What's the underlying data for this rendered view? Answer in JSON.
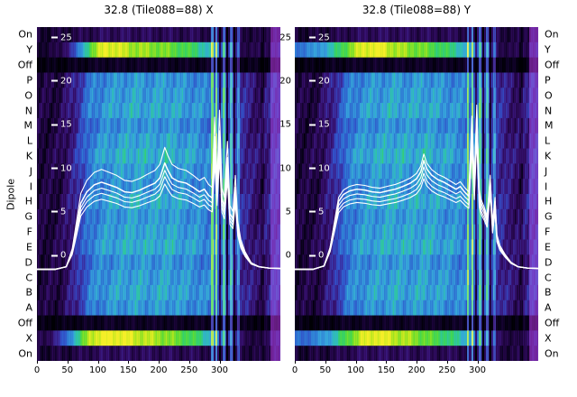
{
  "figure": {
    "y_axis_label": "Dipole"
  },
  "chart_data": {
    "type": "heatmap",
    "note": "Two spectrogram panels (power vs channel per dipole row) with overlaid white bandpass line plots",
    "x_range": [
      0,
      400
    ],
    "x_ticks": [
      0,
      50,
      100,
      150,
      200,
      250,
      300
    ],
    "rows": [
      "On",
      "Y",
      "Off",
      "P",
      "O",
      "N",
      "M",
      "L",
      "K",
      "J",
      "I",
      "H",
      "G",
      "F",
      "E",
      "D",
      "C",
      "B",
      "A",
      "Off",
      "X",
      "On"
    ],
    "row_types": [
      "on",
      "bright_y",
      "off",
      "dip",
      "dip",
      "dip",
      "dip",
      "dip",
      "dip",
      "dip",
      "dip",
      "dip",
      "dip",
      "dip",
      "dip",
      "dip",
      "dip",
      "dip",
      "dip",
      "off",
      "bright_x",
      "on"
    ],
    "row_gain": [
      1.0,
      1.0,
      1.0,
      0.96,
      1.0,
      1.04,
      0.94,
      1.02,
      1.08,
      1.0,
      0.96,
      1.05,
      0.98,
      1.02,
      1.06,
      0.95,
      1.0,
      1.03,
      0.97,
      1.0,
      1.0,
      1.0
    ],
    "overlay_axis": {
      "ticks": [
        25,
        20,
        15,
        10,
        5,
        0
      ],
      "top_value": 26.2,
      "bottom_value": -12.1
    },
    "right_gap_ticks": [
      25,
      20,
      15,
      10,
      5,
      0
    ],
    "noise_scale": {
      "dip": 1.0,
      "bright_y": 0.6,
      "bright_x": 0.6,
      "off": 0.5,
      "on": 0.8
    },
    "colormap": [
      [
        0.0,
        "#000004"
      ],
      [
        0.06,
        "#0b0220"
      ],
      [
        0.14,
        "#230646"
      ],
      [
        0.22,
        "#36106e"
      ],
      [
        0.3,
        "#3b2a9a"
      ],
      [
        0.4,
        "#3250c8"
      ],
      [
        0.5,
        "#2f7ad4"
      ],
      [
        0.6,
        "#37a5dc"
      ],
      [
        0.68,
        "#2fc0b4"
      ],
      [
        0.76,
        "#36d264"
      ],
      [
        0.84,
        "#62dc32"
      ],
      [
        0.92,
        "#b4e61e"
      ],
      [
        1.0,
        "#f4ee28"
      ]
    ],
    "panels": [
      {
        "title": "32.8 (Tile088=88) X",
        "profiles": {
          "dip": [
            0.12,
            0.14,
            0.28,
            0.5,
            0.56,
            0.58,
            0.6,
            0.58,
            0.6,
            0.57,
            0.55,
            0.5,
            0.4,
            0.3,
            0.2,
            0.28
          ],
          "off": [
            0.03,
            0.03,
            0.05,
            0.06,
            0.07,
            0.07,
            0.07,
            0.07,
            0.07,
            0.06,
            0.06,
            0.06,
            0.08,
            0.05,
            0.04,
            0.06
          ],
          "on": [
            0.1,
            0.11,
            0.13,
            0.16,
            0.18,
            0.18,
            0.18,
            0.17,
            0.17,
            0.16,
            0.16,
            0.15,
            0.18,
            0.13,
            0.12,
            0.16
          ],
          "bright_y": [
            0.1,
            0.13,
            0.38,
            0.82,
            1.0,
            0.95,
            0.9,
            0.88,
            0.85,
            0.8,
            0.75,
            0.62,
            0.4,
            0.16,
            0.13,
            0.2
          ],
          "bright_x": [
            0.14,
            0.32,
            0.65,
            0.95,
            1.0,
            1.0,
            0.95,
            0.92,
            0.88,
            0.82,
            0.76,
            0.62,
            0.4,
            0.16,
            0.13,
            0.2
          ]
        },
        "streaks": [
          {
            "ch": 288,
            "w": 4,
            "boost": 0.3,
            "white": 0.3
          },
          {
            "ch": 295,
            "w": 3,
            "boost": 0.32,
            "white": 0.45
          },
          {
            "ch": 301,
            "w": 3,
            "boost": -0.28
          },
          {
            "ch": 307,
            "w": 4,
            "boost": 0.28,
            "white": 0.3
          },
          {
            "ch": 313,
            "w": 3,
            "boost": -0.3
          },
          {
            "ch": 319,
            "w": 4,
            "boost": 0.26,
            "white": 0.3
          },
          {
            "ch": 325,
            "w": 3,
            "boost": -0.22
          },
          {
            "ch": 331,
            "w": 4,
            "boost": 0.2,
            "white": 0.18
          },
          {
            "ch": 370,
            "w": 6,
            "boost": -0.08
          },
          {
            "ch": 392,
            "w": 16,
            "boost": 0.1,
            "magenta": 0.45
          }
        ],
        "line": {
          "baseline": -1.4,
          "spread": [
            0.8,
            0.87,
            0.93,
            1.15,
            1.0
          ],
          "points": [
            [
              0,
              -1.6
            ],
            [
              30,
              -1.6
            ],
            [
              48,
              -1.3
            ],
            [
              58,
              0.5
            ],
            [
              65,
              3.2
            ],
            [
              72,
              6.0
            ],
            [
              82,
              7.3
            ],
            [
              94,
              8.1
            ],
            [
              106,
              8.4
            ],
            [
              119,
              8.1
            ],
            [
              131,
              7.8
            ],
            [
              144,
              7.3
            ],
            [
              156,
              7.2
            ],
            [
              169,
              7.5
            ],
            [
              181,
              7.9
            ],
            [
              194,
              8.3
            ],
            [
              202,
              8.9
            ],
            [
              210,
              10.6
            ],
            [
              215,
              9.8
            ],
            [
              222,
              8.9
            ],
            [
              232,
              8.5
            ],
            [
              245,
              8.3
            ],
            [
              257,
              7.8
            ],
            [
              267,
              7.3
            ],
            [
              275,
              7.6
            ],
            [
              282,
              6.9
            ],
            [
              288,
              6.6
            ],
            [
              292,
              13.6
            ],
            [
              296,
              7.5
            ],
            [
              300,
              14.3
            ],
            [
              304,
              6.5
            ],
            [
              308,
              5.6
            ],
            [
              313,
              11.2
            ],
            [
              317,
              4.8
            ],
            [
              322,
              4.2
            ],
            [
              326,
              7.8
            ],
            [
              330,
              3.2
            ],
            [
              335,
              1.4
            ],
            [
              342,
              0.2
            ],
            [
              352,
              -0.9
            ],
            [
              365,
              -1.3
            ],
            [
              381,
              -1.45
            ],
            [
              400,
              -1.5
            ]
          ]
        }
      },
      {
        "title": "32.8 (Tile088=88) Y",
        "profiles": {
          "dip": [
            0.12,
            0.14,
            0.28,
            0.5,
            0.56,
            0.58,
            0.6,
            0.58,
            0.6,
            0.57,
            0.55,
            0.5,
            0.4,
            0.3,
            0.2,
            0.28
          ],
          "off": [
            0.03,
            0.03,
            0.05,
            0.06,
            0.07,
            0.07,
            0.07,
            0.07,
            0.07,
            0.06,
            0.06,
            0.06,
            0.08,
            0.05,
            0.04,
            0.06
          ],
          "on": [
            0.1,
            0.11,
            0.13,
            0.16,
            0.18,
            0.18,
            0.18,
            0.17,
            0.17,
            0.16,
            0.16,
            0.15,
            0.18,
            0.13,
            0.12,
            0.16
          ],
          "bright_y": [
            0.5,
            0.56,
            0.68,
            0.85,
            0.98,
            1.0,
            0.92,
            0.88,
            0.84,
            0.78,
            0.72,
            0.6,
            0.38,
            0.16,
            0.13,
            0.2
          ],
          "bright_x": [
            0.46,
            0.52,
            0.64,
            0.82,
            0.96,
            1.0,
            0.94,
            0.9,
            0.84,
            0.78,
            0.72,
            0.6,
            0.38,
            0.16,
            0.13,
            0.2
          ]
        },
        "streaks": [
          {
            "ch": 285,
            "w": 3,
            "boost": 0.3,
            "white": 0.35
          },
          {
            "ch": 292,
            "w": 3,
            "boost": 0.32,
            "white": 0.45
          },
          {
            "ch": 298,
            "w": 3,
            "boost": -0.28
          },
          {
            "ch": 304,
            "w": 4,
            "boost": 0.28,
            "white": 0.3
          },
          {
            "ch": 310,
            "w": 3,
            "boost": -0.3
          },
          {
            "ch": 316,
            "w": 4,
            "boost": 0.26,
            "white": 0.3
          },
          {
            "ch": 322,
            "w": 3,
            "boost": -0.22
          },
          {
            "ch": 328,
            "w": 4,
            "boost": 0.2,
            "white": 0.18
          },
          {
            "ch": 372,
            "w": 6,
            "boost": -0.08
          },
          {
            "ch": 393,
            "w": 16,
            "boost": 0.1,
            "magenta": 0.45
          }
        ],
        "line": {
          "baseline": -1.4,
          "spread": [
            0.83,
            0.88,
            0.94,
            1.06,
            1.0
          ],
          "points": [
            [
              0,
              -1.6
            ],
            [
              30,
              -1.6
            ],
            [
              48,
              -1.2
            ],
            [
              58,
              0.8
            ],
            [
              65,
              3.5
            ],
            [
              72,
              6.2
            ],
            [
              80,
              7.0
            ],
            [
              90,
              7.4
            ],
            [
              102,
              7.6
            ],
            [
              115,
              7.5
            ],
            [
              127,
              7.3
            ],
            [
              140,
              7.2
            ],
            [
              152,
              7.4
            ],
            [
              165,
              7.6
            ],
            [
              177,
              7.9
            ],
            [
              190,
              8.3
            ],
            [
              200,
              8.8
            ],
            [
              207,
              9.6
            ],
            [
              212,
              10.9
            ],
            [
              217,
              9.9
            ],
            [
              225,
              9.2
            ],
            [
              235,
              8.7
            ],
            [
              245,
              8.4
            ],
            [
              255,
              8.0
            ],
            [
              265,
              7.6
            ],
            [
              272,
              7.9
            ],
            [
              280,
              7.2
            ],
            [
              286,
              6.8
            ],
            [
              291,
              15.0
            ],
            [
              295,
              8.0
            ],
            [
              299,
              16.2
            ],
            [
              303,
              7.0
            ],
            [
              306,
              6.0
            ],
            [
              311,
              5.2
            ],
            [
              316,
              4.2
            ],
            [
              321,
              8.6
            ],
            [
              325,
              3.4
            ],
            [
              329,
              6.2
            ],
            [
              332,
              2.2
            ],
            [
              337,
              1.0
            ],
            [
              345,
              0.1
            ],
            [
              355,
              -0.8
            ],
            [
              367,
              -1.3
            ],
            [
              382,
              -1.45
            ],
            [
              400,
              -1.5
            ]
          ]
        }
      }
    ]
  }
}
